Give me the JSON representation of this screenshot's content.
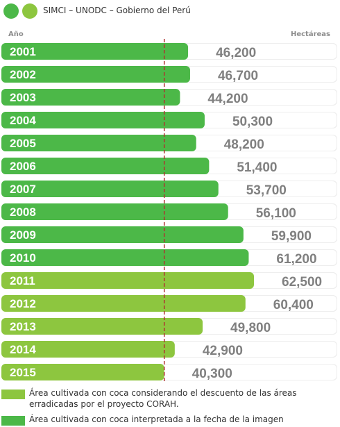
{
  "header": {
    "source": "SIMCI – UNODC – Gobierno del Perú",
    "dot_colors": [
      "#4cb848",
      "#8dc63f"
    ]
  },
  "axis": {
    "left_label": "Año",
    "right_label": "Hectáreas"
  },
  "legend": {
    "items": [
      {
        "label": "Área cultivada con coca considerando el descuento de las áreas erradicadas por el proyecto CORAH.",
        "color": "#8dc63f"
      },
      {
        "label": "Área cultivada con coca interpretada a la fecha de la imagen",
        "color": "#4cb848"
      }
    ]
  },
  "chart_data": {
    "type": "bar",
    "orientation": "horizontal",
    "categories": [
      "2001",
      "2002",
      "2003",
      "2004",
      "2005",
      "2006",
      "2007",
      "2008",
      "2009",
      "2010",
      "2011",
      "2012",
      "2013",
      "2014",
      "2015"
    ],
    "values": [
      46200,
      46700,
      44200,
      50300,
      48200,
      51400,
      53700,
      56100,
      59900,
      61200,
      62500,
      60400,
      49800,
      42900,
      40300
    ],
    "value_labels": [
      "46,200",
      "46,700",
      "44,200",
      "50,300",
      "48,200",
      "51,400",
      "53,700",
      "56,100",
      "59,900",
      "61,200",
      "62,500",
      "60,400",
      "49,800",
      "42,900",
      "40,300"
    ],
    "bar_series": [
      "dark",
      "dark",
      "dark",
      "dark",
      "dark",
      "dark",
      "dark",
      "dark",
      "dark",
      "dark",
      "light",
      "light",
      "light",
      "light",
      "light"
    ],
    "colors": {
      "dark": "#4cb848",
      "light": "#8dc63f",
      "track": "#ffffff",
      "row_bg": "#eeeeee",
      "value_text": "#808080",
      "reference_line": "#b03030"
    },
    "xlim": [
      0,
      62500
    ],
    "reference_value": 40300,
    "grid": false
  }
}
